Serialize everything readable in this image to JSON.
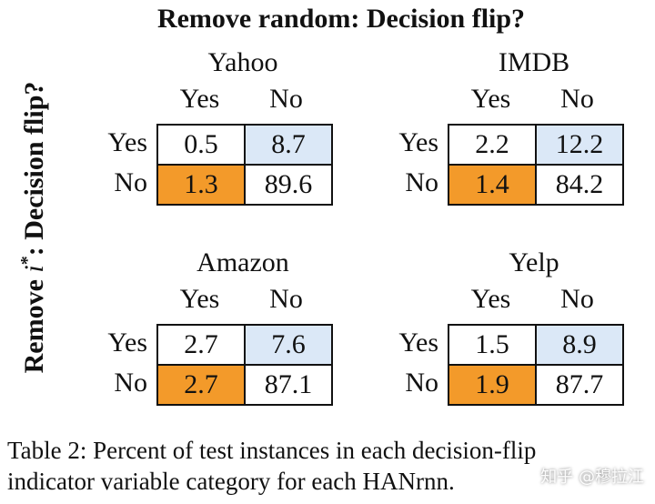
{
  "title": "Remove random: Decision flip?",
  "side_title": {
    "prefix": "Remove ",
    "var": "i",
    "sup": "*",
    "suffix": ": Decision flip?"
  },
  "panels": [
    {
      "name": "Yahoo",
      "cols": [
        "Yes",
        "No"
      ],
      "rows": [
        "Yes",
        "No"
      ],
      "cells": [
        "0.5",
        "8.7",
        "1.3",
        "89.6"
      ]
    },
    {
      "name": "IMDB",
      "cols": [
        "Yes",
        "No"
      ],
      "rows": [
        "Yes",
        "No"
      ],
      "cells": [
        "2.2",
        "12.2",
        "1.4",
        "84.2"
      ]
    },
    {
      "name": "Amazon",
      "cols": [
        "Yes",
        "No"
      ],
      "rows": [
        "Yes",
        "No"
      ],
      "cells": [
        "2.7",
        "7.6",
        "2.7",
        "87.1"
      ]
    },
    {
      "name": "Yelp",
      "cols": [
        "Yes",
        "No"
      ],
      "rows": [
        "Yes",
        "No"
      ],
      "cells": [
        "1.5",
        "8.9",
        "1.9",
        "87.7"
      ]
    }
  ],
  "cell_colors": {
    "blue": "#dbe8f7",
    "orange": "#f39a2a"
  },
  "caption": {
    "line1": "Table 2:  Percent of test instances in each decision-flip",
    "line2": "indicator variable category for each HANrnn."
  },
  "watermark": "知乎 @穆拉江"
}
